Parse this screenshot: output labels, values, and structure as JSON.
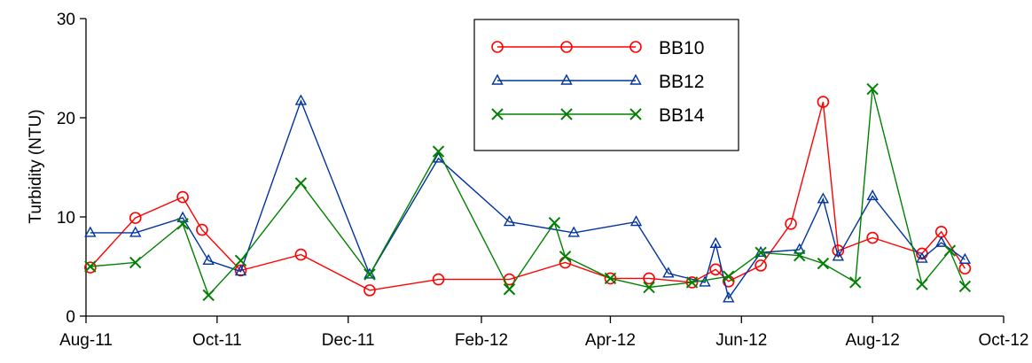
{
  "chart_data": {
    "type": "line",
    "title": "",
    "xlabel": "",
    "ylabel": "Turbidity (NTU)",
    "x_type": "date",
    "xlim": [
      "2011-08-01",
      "2012-10-01"
    ],
    "ylim": [
      0,
      30
    ],
    "x_ticks": [
      {
        "date": "2011-08-01",
        "label": "Aug-11"
      },
      {
        "date": "2011-10-01",
        "label": "Oct-11"
      },
      {
        "date": "2011-12-01",
        "label": "Dec-11"
      },
      {
        "date": "2012-02-01",
        "label": "Feb-12"
      },
      {
        "date": "2012-04-01",
        "label": "Apr-12"
      },
      {
        "date": "2012-06-01",
        "label": "Jun-12"
      },
      {
        "date": "2012-08-01",
        "label": "Aug-12"
      },
      {
        "date": "2012-10-01",
        "label": "Oct-12"
      }
    ],
    "y_ticks": [
      0,
      10,
      20,
      30
    ],
    "grid": false,
    "legend_position": "top-center",
    "series": [
      {
        "name": "BB10",
        "color": "#ff0000",
        "marker": "circle",
        "points": [
          [
            "2011-08-03",
            4.9
          ],
          [
            "2011-08-24",
            9.9
          ],
          [
            "2011-09-15",
            12.0
          ],
          [
            "2011-09-24",
            8.7
          ],
          [
            "2011-10-12",
            4.6
          ],
          [
            "2011-11-09",
            6.2
          ],
          [
            "2011-12-11",
            2.6
          ],
          [
            "2012-01-12",
            3.7
          ],
          [
            "2012-02-14",
            3.7
          ],
          [
            "2012-03-11",
            5.4
          ],
          [
            "2012-04-01",
            3.8
          ],
          [
            "2012-04-19",
            3.8
          ],
          [
            "2012-05-09",
            3.4
          ],
          [
            "2012-05-20",
            4.7
          ],
          [
            "2012-05-26",
            3.5
          ],
          [
            "2012-06-10",
            5.1
          ],
          [
            "2012-06-24",
            9.3
          ],
          [
            "2012-07-09",
            21.6
          ],
          [
            "2012-07-16",
            6.6
          ],
          [
            "2012-08-01",
            7.9
          ],
          [
            "2012-08-24",
            6.3
          ],
          [
            "2012-09-02",
            8.5
          ],
          [
            "2012-09-13",
            4.8
          ]
        ]
      },
      {
        "name": "BB12",
        "color": "#0033a0",
        "marker": "triangle",
        "points": [
          [
            "2011-08-03",
            8.4
          ],
          [
            "2011-08-24",
            8.4
          ],
          [
            "2011-09-15",
            9.9
          ],
          [
            "2011-09-27",
            5.6
          ],
          [
            "2011-10-12",
            4.5
          ],
          [
            "2011-11-09",
            21.7
          ],
          [
            "2011-12-11",
            4.2
          ],
          [
            "2012-01-12",
            15.9
          ],
          [
            "2012-02-14",
            9.5
          ],
          [
            "2012-03-15",
            8.4
          ],
          [
            "2012-04-13",
            9.5
          ],
          [
            "2012-04-28",
            4.3
          ],
          [
            "2012-05-15",
            3.4
          ],
          [
            "2012-05-20",
            7.3
          ],
          [
            "2012-05-26",
            1.8
          ],
          [
            "2012-06-10",
            6.4
          ],
          [
            "2012-06-28",
            6.7
          ],
          [
            "2012-07-09",
            11.8
          ],
          [
            "2012-07-16",
            6.0
          ],
          [
            "2012-08-01",
            12.1
          ],
          [
            "2012-08-24",
            5.8
          ],
          [
            "2012-09-02",
            7.4
          ],
          [
            "2012-09-13",
            5.7
          ]
        ]
      },
      {
        "name": "BB14",
        "color": "#008000",
        "marker": "x",
        "points": [
          [
            "2011-08-03",
            5.0
          ],
          [
            "2011-08-24",
            5.4
          ],
          [
            "2011-09-15",
            9.3
          ],
          [
            "2011-09-27",
            2.1
          ],
          [
            "2011-10-12",
            5.6
          ],
          [
            "2011-11-09",
            13.4
          ],
          [
            "2011-12-11",
            4.2
          ],
          [
            "2012-01-12",
            16.6
          ],
          [
            "2012-02-14",
            2.7
          ],
          [
            "2012-03-06",
            9.4
          ],
          [
            "2012-03-11",
            6.0
          ],
          [
            "2012-04-01",
            3.8
          ],
          [
            "2012-04-19",
            2.9
          ],
          [
            "2012-05-09",
            3.4
          ],
          [
            "2012-05-26",
            4.0
          ],
          [
            "2012-06-10",
            6.4
          ],
          [
            "2012-06-28",
            6.1
          ],
          [
            "2012-07-09",
            5.3
          ],
          [
            "2012-07-24",
            3.4
          ],
          [
            "2012-08-01",
            22.9
          ],
          [
            "2012-08-24",
            3.2
          ],
          [
            "2012-09-06",
            6.6
          ],
          [
            "2012-09-13",
            3.0
          ]
        ]
      }
    ]
  }
}
